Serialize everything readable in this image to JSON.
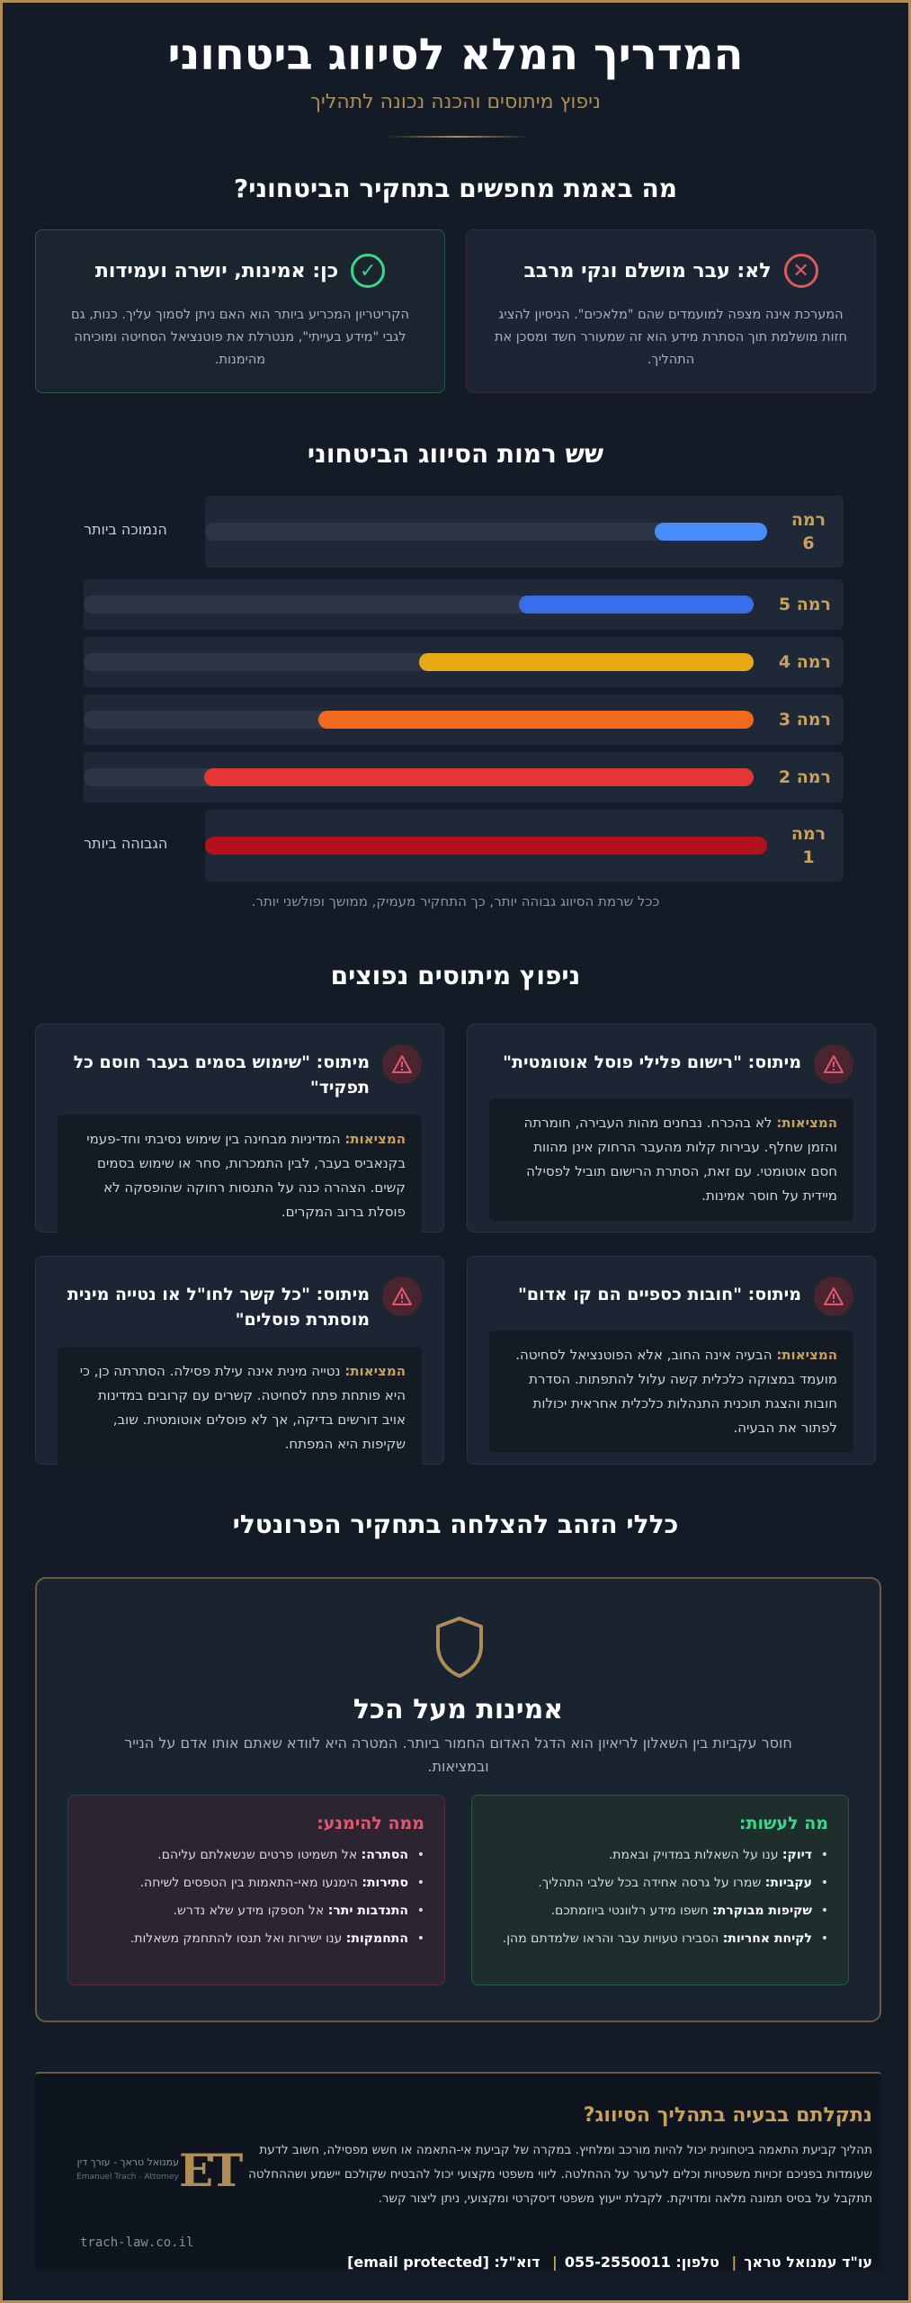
{
  "header": {
    "title": "המדריך המלא לסיווג ביטחוני",
    "subtitle": "ניפוץ מיתוסים והכנה נכונה לתהליך"
  },
  "truth": {
    "heading": "מה באמת מחפשים בתחקיר הביטחוני?",
    "no": {
      "title": "לא: עבר מושלם ונקי מרבב",
      "text": "המערכת אינה מצפה למועמדים שהם \"מלאכים\". הניסיון להציג חזות מושלמת תוך הסתרת מידע הוא זה שמעורר חשד ומסכן את התהליך."
    },
    "yes": {
      "title": "כן: אמינות, יושרה ועמידות",
      "text": "הקריטריון המכריע ביותר הוא האם ניתן לסמוך עליך. כנות, גם לגבי \"מידע בעייתי\", מנטרלת את פוטנציאל הסחיטה ומוכיחה מהימנות."
    }
  },
  "levels": {
    "heading": "שש רמות הסיווג הביטחוני",
    "items": [
      {
        "label": "רמה 6",
        "fill": 0.2,
        "color": "#4a8cf7",
        "note": "הנמוכה ביותר"
      },
      {
        "label": "רמה 5",
        "fill": 0.35,
        "color": "#3b6de8",
        "note": ""
      },
      {
        "label": "רמה 4",
        "fill": 0.5,
        "color": "#e8a918",
        "note": ""
      },
      {
        "label": "רמה 3",
        "fill": 0.65,
        "color": "#f26a1b",
        "note": ""
      },
      {
        "label": "רמה 2",
        "fill": 0.82,
        "color": "#e33636",
        "note": ""
      },
      {
        "label": "רמה 1",
        "fill": 1.0,
        "color": "#b3121d",
        "note": "הגבוהה ביותר"
      }
    ],
    "caption": "ככל שרמת הסיווג גבוהה יותר, כך התחקיר מעמיק, ממושך ופולשני יותר."
  },
  "myths": {
    "heading": "ניפוץ מיתוסים נפוצים",
    "tag": "המציאות:",
    "items": [
      {
        "title": "מיתוס: \"רישום פלילי פוסל אוטומטית\"",
        "text": "לא בהכרח. נבחנים מהות העבירה, חומרתה והזמן שחלף. עבירות קלות מהעבר הרחוק אינן מהוות חסם אוטומטי. עם זאת, הסתרת הרישום תוביל לפסילה מיידית על חוסר אמינות."
      },
      {
        "title": "מיתוס: \"שימוש בסמים בעבר חוסם כל תפקיד\"",
        "text": "המדיניות מבחינה בין שימוש נסיבתי וחד-פעמי בקנאביס בעבר, לבין התמכרות, סחר או שימוש בסמים קשים. הצהרה כנה על התנסות רחוקה שהופסקה לא פוסלת ברוב המקרים."
      },
      {
        "title": "מיתוס: \"חובות כספיים הם קו אדום\"",
        "text": "הבעיה אינה החוב, אלא הפוטנציאל לסחיטה. מועמד במצוקה כלכלית קשה עלול להתפתות. הסדרת חובות והצגת תוכנית התנהלות כלכלית אחראית יכולות לפתור את הבעיה."
      },
      {
        "title": "מיתוס: \"כל קשר לחו\"ל או נטייה מינית מוסתרת פוסלים\"",
        "text": "נטייה מינית אינה עילת פסילה. הסתרתה כן, כי היא פותחת פתח לסחיטה. קשרים עם קרובים במדינות אויב דורשים בדיקה, אך לא פוסלים אוטומטית. שוב, שקיפות היא המפתח."
      }
    ]
  },
  "golden": {
    "heading": "כללי הזהב להצלחה בתחקיר הפרונטלי",
    "title": "אמינות מעל הכל",
    "text": "חוסר עקביות בין השאלון לריאיון הוא הדגל האדום החמור ביותר. המטרה היא לוודא שאתם אותו אדם על הנייר ובמציאות.",
    "do": {
      "title": "מה לעשות:",
      "items": [
        {
          "term": "דיוק:",
          "text": "ענו על השאלות במדויק ובאמת."
        },
        {
          "term": "עקביות:",
          "text": "שמרו על גרסה אחידה בכל שלבי התהליך."
        },
        {
          "term": "שקיפות מבוקרת:",
          "text": "חשפו מידע רלוונטי ביוזמתכם."
        },
        {
          "term": "לקיחת אחריות:",
          "text": "הסבירו טעויות עבר והראו שלמדתם מהן."
        }
      ]
    },
    "dont": {
      "title": "ממה להימנע:",
      "items": [
        {
          "term": "הסתרה:",
          "text": "אל תשמיטו פרטים שנשאלתם עליהם."
        },
        {
          "term": "סתירות:",
          "text": "הימנעו מאי-התאמות בין הטפסים לשיחה."
        },
        {
          "term": "התנדבות יתר:",
          "text": "אל תספקו מידע שלא נדרש."
        },
        {
          "term": "התחמקות:",
          "text": "ענו ישירות ואל תנסו להתחמק משאלות."
        }
      ]
    }
  },
  "footer": {
    "title": "נתקלתם בבעיה בתהליך הסיווג?",
    "text": "תהליך קביעת התאמה ביטחונית יכול להיות מורכב ומלחיץ. במקרה של קביעת אי-התאמה או חשש מפסילה, חשוב לדעת שעומדות בפניכם זכויות משפטיות וכלים לערער על ההחלטה. ליווי משפטי מקצועי יכול להבטיח שקולכם יישמע ושההחלטה תתקבל על בסיס תמונה מלאה ומדויקת. לקבלת ייעוץ משפטי דיסקרטי ומקצועי, ניתן ליצור קשר.",
    "contact_name": "עו\"ד עמנואל טראך",
    "contact_phone_label": "טלפון:",
    "contact_phone": "055-2550011",
    "contact_email_label": "דוא\"ל:",
    "contact_email": "[email protected]",
    "logo_letters": "ET",
    "logo_name": "עמנואל טראך - עורך דין",
    "logo_sub": "Emanuel Trach - Attorney",
    "url": "trach-law.co.il"
  }
}
